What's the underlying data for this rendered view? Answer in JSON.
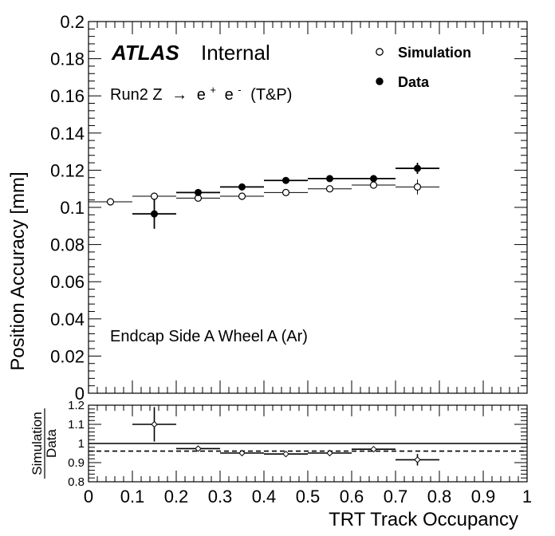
{
  "chart_data": [
    {
      "type": "scatter",
      "panel": "main",
      "ylabel": "Position Accuracy [mm]",
      "ylim": [
        0,
        0.2
      ],
      "xlim": [
        0,
        1
      ],
      "yticks": [
        "0",
        "0.02",
        "0.04",
        "0.06",
        "0.08",
        "0.1",
        "0.12",
        "0.14",
        "0.16",
        "0.18",
        "0.2"
      ],
      "atlas_label": "ATLAS",
      "atlas_sublabel": "Internal",
      "run_label_prefix": "Run2 Z",
      "run_label_arrow": "→",
      "run_label_e1": "e",
      "run_label_e1_sup": "+",
      "run_label_e2": "e",
      "run_label_e2_sup": "-",
      "run_label_suffix": "(T&P)",
      "region_label": "Endcap Side A Wheel A (Ar)",
      "legend_position": "top-right",
      "series": [
        {
          "name": "Simulation",
          "marker": "open-circle",
          "x": [
            0.05,
            0.15,
            0.25,
            0.35,
            0.45,
            0.55,
            0.65,
            0.75
          ],
          "y": [
            0.103,
            0.106,
            0.105,
            0.106,
            0.108,
            0.11,
            0.112,
            0.111
          ],
          "yerr": [
            0.0005,
            0.0008,
            0.0006,
            0.0007,
            0.0006,
            0.0008,
            0.001,
            0.004
          ]
        },
        {
          "name": "Data",
          "marker": "filled-circle",
          "x": [
            0.15,
            0.25,
            0.35,
            0.45,
            0.55,
            0.65,
            0.75
          ],
          "y": [
            0.0965,
            0.108,
            0.111,
            0.1145,
            0.1155,
            0.1155,
            0.121
          ],
          "yerr": [
            0.008,
            0.0015,
            0.0015,
            0.0013,
            0.0013,
            0.0016,
            0.003
          ]
        }
      ],
      "xerr": 0.05
    },
    {
      "type": "scatter",
      "panel": "ratio",
      "ylabel_num": "Simulation",
      "ylabel_den": "Data",
      "xlabel": "TRT Track Occupancy",
      "ylim": [
        0.8,
        1.2
      ],
      "xlim": [
        0,
        1
      ],
      "yticks": [
        "0.8",
        "0.9",
        "1",
        "1.1",
        "1.2"
      ],
      "xticks": [
        "0",
        "0.1",
        "0.2",
        "0.3",
        "0.4",
        "0.5",
        "0.6",
        "0.7",
        "0.8",
        "0.9",
        "1"
      ],
      "reference_line": 1.0,
      "dashed_line": 0.96,
      "series": [
        {
          "name": "Simulation / Data",
          "marker": "open-diamond",
          "x": [
            0.15,
            0.25,
            0.35,
            0.45,
            0.55,
            0.65,
            0.75
          ],
          "y": [
            1.1,
            0.973,
            0.95,
            0.945,
            0.95,
            0.97,
            0.915
          ],
          "yerr": [
            0.09,
            0.012,
            0.01,
            0.01,
            0.01,
            0.012,
            0.03
          ]
        }
      ],
      "xerr": 0.05
    }
  ]
}
